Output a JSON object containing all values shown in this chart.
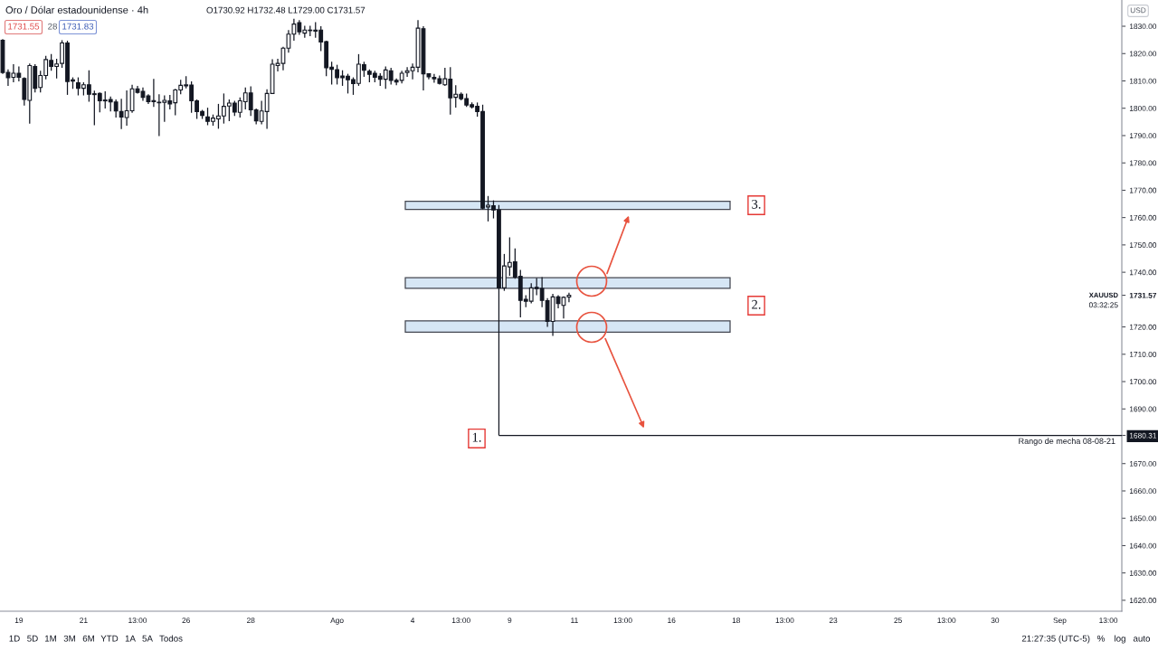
{
  "chart_data": {
    "type": "candlestick",
    "title": "Oro / Dólar estadounidense · 4h",
    "subtitle": "O1730.92 H1732.48 L1729.00 C1731.57",
    "categories": [
      null,
      null,
      null,
      "19",
      null,
      null,
      null,
      null,
      null,
      null,
      null,
      null,
      null,
      null,
      null,
      "21",
      null,
      null,
      null,
      null,
      null,
      null,
      null,
      null,
      null,
      "13:00",
      null,
      null,
      null,
      null,
      null,
      null,
      null,
      null,
      "26",
      null,
      null,
      null,
      null,
      null,
      null,
      null,
      null,
      null,
      null,
      null,
      "28",
      null,
      null,
      null,
      null,
      null,
      null,
      null,
      null,
      null,
      null,
      null,
      null,
      null,
      null,
      null,
      "Ago",
      null,
      null,
      null,
      null,
      null,
      null,
      null,
      null,
      null,
      null,
      null,
      null,
      null,
      "4",
      null,
      null,
      null,
      null,
      null,
      null,
      null,
      null,
      "13:00",
      null,
      null,
      null,
      null,
      null,
      null,
      null,
      null,
      "9",
      null,
      null,
      null,
      null,
      null,
      null,
      null,
      null,
      null,
      null,
      null,
      "11",
      null,
      null,
      null,
      null,
      null,
      null,
      null,
      null,
      "13:00",
      null,
      null,
      null,
      null,
      null,
      null,
      null,
      null,
      "16",
      null,
      null,
      null,
      null,
      null,
      null,
      null,
      null,
      null,
      null,
      null,
      "18",
      null,
      null,
      null,
      null,
      null,
      null,
      null,
      null,
      "13:00",
      null,
      null,
      null,
      null,
      null,
      null,
      null,
      null,
      "23",
      null,
      null,
      null,
      null,
      null,
      null,
      null,
      null,
      null,
      null,
      null,
      "25",
      null,
      null,
      null,
      null,
      null,
      null,
      null,
      null,
      "13:00",
      null,
      null,
      null,
      null,
      null,
      null,
      null,
      null,
      "30",
      null,
      null,
      null,
      null,
      null,
      null,
      null,
      null,
      null,
      null,
      null,
      "Sep",
      null,
      null,
      null,
      null,
      null,
      null,
      null,
      null,
      "13:00",
      null,
      null
    ],
    "ohlc": [
      [
        1824.9,
        1825.3,
        1812.6,
        1813.1
      ],
      [
        1813.1,
        1814.2,
        1808.2,
        1811.2
      ],
      [
        1811.3,
        1816.1,
        1809.5,
        1812.8
      ],
      [
        1812.8,
        1815.3,
        1809.8,
        1811.3
      ],
      [
        1810.9,
        1811.3,
        1801.0,
        1803.2
      ],
      [
        1802.9,
        1816.4,
        1794.4,
        1815.6
      ],
      [
        1815.3,
        1816.1,
        1805.8,
        1807.3
      ],
      [
        1807.6,
        1813.7,
        1805.8,
        1812.0
      ],
      [
        1812.0,
        1819.2,
        1810.6,
        1817.8
      ],
      [
        1817.5,
        1819.8,
        1813.7,
        1815.3
      ],
      [
        1815.3,
        1818.1,
        1810.9,
        1816.2
      ],
      [
        1816.4,
        1824.9,
        1814.8,
        1823.9
      ],
      [
        1823.9,
        1824.7,
        1804.9,
        1809.8
      ],
      [
        1810.4,
        1811.3,
        1807.1,
        1809.9
      ],
      [
        1809.3,
        1811.3,
        1804.7,
        1807.3
      ],
      [
        1807.3,
        1809.5,
        1804.7,
        1808.6
      ],
      [
        1808.6,
        1813.9,
        1802.4,
        1805.1
      ],
      [
        1805.3,
        1806.4,
        1793.8,
        1805.0
      ],
      [
        1805.4,
        1805.8,
        1798.5,
        1802.7
      ],
      [
        1803.0,
        1806.2,
        1799.9,
        1802.7
      ],
      [
        1803.2,
        1804.3,
        1798.8,
        1802.3
      ],
      [
        1802.3,
        1803.2,
        1796.6,
        1799.0
      ],
      [
        1798.8,
        1803.5,
        1792.4,
        1796.8
      ],
      [
        1796.6,
        1806.5,
        1793.6,
        1799.1
      ],
      [
        1799.1,
        1808.6,
        1798.3,
        1807.1
      ],
      [
        1807.1,
        1808.2,
        1805.4,
        1805.8
      ],
      [
        1806.2,
        1807.6,
        1802.7,
        1804.0
      ],
      [
        1804.5,
        1805.1,
        1801.6,
        1802.4
      ],
      [
        1802.8,
        1810.7,
        1800.5,
        1802.4
      ],
      [
        1802.2,
        1805.1,
        1789.8,
        1802.0
      ],
      [
        1802.2,
        1804.7,
        1795.0,
        1802.9
      ],
      [
        1802.7,
        1804.9,
        1799.6,
        1801.6
      ],
      [
        1802.0,
        1807.1,
        1797.4,
        1806.7
      ],
      [
        1806.7,
        1810.4,
        1805.1,
        1808.4
      ],
      [
        1808.2,
        1811.7,
        1807.3,
        1808.6
      ],
      [
        1808.5,
        1809.8,
        1798.3,
        1802.7
      ],
      [
        1802.7,
        1803.2,
        1796.1,
        1798.8
      ],
      [
        1798.8,
        1799.4,
        1796.1,
        1797.4
      ],
      [
        1796.8,
        1800.2,
        1793.8,
        1795.2
      ],
      [
        1795.2,
        1797.7,
        1793.6,
        1796.4
      ],
      [
        1796.1,
        1801.6,
        1792.5,
        1797.2
      ],
      [
        1797.2,
        1805.4,
        1794.4,
        1800.7
      ],
      [
        1800.8,
        1803.2,
        1795.3,
        1801.9
      ],
      [
        1801.9,
        1802.7,
        1797.2,
        1798.6
      ],
      [
        1798.5,
        1804.0,
        1796.6,
        1802.7
      ],
      [
        1802.4,
        1807.6,
        1799.6,
        1805.6
      ],
      [
        1805.6,
        1808.0,
        1797.2,
        1799.4
      ],
      [
        1799.4,
        1799.9,
        1794.1,
        1795.4
      ],
      [
        1795.2,
        1802.7,
        1794.1,
        1799.0
      ],
      [
        1798.8,
        1806.9,
        1792.5,
        1805.4
      ],
      [
        1805.4,
        1817.9,
        1805.4,
        1816.1
      ],
      [
        1815.6,
        1818.1,
        1813.5,
        1816.4
      ],
      [
        1816.4,
        1822.5,
        1813.9,
        1822.0
      ],
      [
        1822.0,
        1828.6,
        1820.3,
        1827.1
      ],
      [
        1827.1,
        1832.7,
        1824.7,
        1830.8
      ],
      [
        1831.3,
        1832.2,
        1826.9,
        1828.0
      ],
      [
        1827.5,
        1830.2,
        1825.8,
        1828.6
      ],
      [
        1828.6,
        1830.2,
        1826.4,
        1828.4
      ],
      [
        1828.6,
        1831.5,
        1825.8,
        1828.2
      ],
      [
        1828.6,
        1830.0,
        1820.9,
        1824.2
      ],
      [
        1824.4,
        1824.7,
        1811.7,
        1814.8
      ],
      [
        1815.0,
        1817.0,
        1808.7,
        1814.2
      ],
      [
        1814.1,
        1815.9,
        1808.7,
        1811.2
      ],
      [
        1811.8,
        1813.9,
        1808.2,
        1811.2
      ],
      [
        1811.7,
        1812.6,
        1805.4,
        1810.4
      ],
      [
        1810.5,
        1811.3,
        1804.9,
        1809.0
      ],
      [
        1809.1,
        1819.8,
        1808.2,
        1816.1
      ],
      [
        1815.9,
        1817.0,
        1811.5,
        1813.9
      ],
      [
        1813.5,
        1814.2,
        1809.5,
        1812.4
      ],
      [
        1812.8,
        1813.7,
        1809.5,
        1811.3
      ],
      [
        1811.7,
        1812.8,
        1808.2,
        1810.6
      ],
      [
        1810.6,
        1815.3,
        1807.1,
        1814.0
      ],
      [
        1813.7,
        1814.8,
        1808.7,
        1810.2
      ],
      [
        1810.2,
        1810.9,
        1808.4,
        1809.6
      ],
      [
        1810.2,
        1813.7,
        1809.1,
        1812.8
      ],
      [
        1813.1,
        1815.0,
        1811.5,
        1813.7
      ],
      [
        1813.7,
        1816.4,
        1810.6,
        1815.0
      ],
      [
        1815.0,
        1832.2,
        1813.1,
        1829.3
      ],
      [
        1829.1,
        1830.0,
        1806.5,
        1812.6
      ],
      [
        1812.6,
        1812.8,
        1810.6,
        1811.5
      ],
      [
        1811.3,
        1812.6,
        1809.3,
        1810.8
      ],
      [
        1810.8,
        1812.0,
        1808.7,
        1809.1
      ],
      [
        1808.6,
        1814.8,
        1808.2,
        1810.8
      ],
      [
        1810.6,
        1815.0,
        1797.7,
        1803.8
      ],
      [
        1804.0,
        1808.4,
        1800.2,
        1805.1
      ],
      [
        1805.1,
        1805.8,
        1802.9,
        1803.5
      ],
      [
        1803.5,
        1805.4,
        1800.5,
        1801.2
      ],
      [
        1801.3,
        1802.1,
        1799.9,
        1800.5
      ],
      [
        1800.7,
        1802.1,
        1796.9,
        1798.8
      ],
      [
        1798.8,
        1801.3,
        1763.0,
        1763.5
      ],
      [
        1763.9,
        1767.9,
        1758.6,
        1764.5
      ],
      [
        1764.3,
        1766.3,
        1759.7,
        1762.8
      ],
      [
        1762.8,
        1764.6,
        1680.31,
        1734.3
      ],
      [
        1734.3,
        1746.7,
        1733.2,
        1742.3
      ],
      [
        1742.0,
        1752.8,
        1738.7,
        1743.6
      ],
      [
        1743.8,
        1748.7,
        1737.6,
        1738.2
      ],
      [
        1738.5,
        1740.9,
        1723.5,
        1729.7
      ],
      [
        1730.1,
        1731.6,
        1727.2,
        1729.4
      ],
      [
        1729.4,
        1736.0,
        1728.6,
        1734.3
      ],
      [
        1734.5,
        1737.9,
        1731.6,
        1734.0
      ],
      [
        1734.1,
        1738.2,
        1727.2,
        1729.7
      ],
      [
        1729.6,
        1730.5,
        1720.0,
        1722.0
      ],
      [
        1722.0,
        1732.1,
        1716.7,
        1731.0
      ],
      [
        1731.0,
        1731.6,
        1726.8,
        1728.6
      ],
      [
        1727.9,
        1731.2,
        1723.1,
        1730.8
      ],
      [
        1730.92,
        1732.48,
        1729.0,
        1731.57
      ],
      null,
      null,
      null,
      null,
      null,
      null,
      null,
      null,
      null,
      null,
      null,
      null,
      null,
      null,
      null,
      null,
      null,
      null,
      null,
      null,
      null,
      null,
      null,
      null,
      null,
      null,
      null,
      null,
      null,
      null,
      null,
      null,
      null,
      null,
      null,
      null,
      null,
      null,
      null,
      null,
      null,
      null,
      null,
      null,
      null,
      null,
      null,
      null,
      null,
      null,
      null,
      null,
      null,
      null,
      null,
      null,
      null,
      null,
      null,
      null,
      null,
      null,
      null,
      null,
      null,
      null,
      null,
      null,
      null,
      null,
      null,
      null,
      null,
      null,
      null,
      null,
      null,
      null,
      null,
      null,
      null,
      null,
      null,
      null,
      null,
      null,
      null,
      null,
      null,
      null,
      null,
      null,
      null,
      null,
      null,
      null,
      null,
      null,
      null,
      null,
      null,
      null
    ],
    "ylim": [
      1616.0,
      1839.6
    ],
    "yticks": [
      {
        "value": 1620,
        "label": "1620.00"
      },
      {
        "value": 1630,
        "label": "1630.00"
      },
      {
        "value": 1640,
        "label": "1640.00"
      },
      {
        "value": 1650,
        "label": "1650.00"
      },
      {
        "value": 1660,
        "label": "1660.00"
      },
      {
        "value": 1670,
        "label": "1670.00"
      },
      1680.31,
      {
        "value": 1690,
        "label": "1690.00"
      },
      {
        "value": 1700,
        "label": "1700.00"
      },
      {
        "value": 1710,
        "label": "1710.00"
      },
      {
        "value": 1720,
        "label": "1720.00"
      },
      1731.57,
      {
        "value": 1740,
        "label": "1740.00"
      },
      {
        "value": 1750,
        "label": "1750.00"
      },
      {
        "value": 1760,
        "label": "1760.00"
      },
      {
        "value": 1770,
        "label": "1770.00"
      },
      {
        "value": 1780,
        "label": "1780.00"
      },
      {
        "value": 1790,
        "label": "1790.00"
      },
      {
        "value": 1800,
        "label": "1800.00"
      },
      {
        "value": 1810,
        "label": "1810.00"
      },
      {
        "value": 1820,
        "label": "1820.00"
      },
      {
        "value": 1830,
        "label": "1830.00"
      }
    ],
    "bands": [
      {
        "axis": "y",
        "from": 1763.0,
        "to": 1766.0,
        "color": "#d6e6f5"
      },
      {
        "axis": "y",
        "from": 1734.1,
        "to": 1738.0,
        "color": "#d6e6f5"
      },
      {
        "axis": "y",
        "from": 1718.1,
        "to": 1722.2,
        "color": "#d6e6f5"
      }
    ],
    "ref_lines": [
      {
        "axis": "y",
        "value": 1680.31,
        "label": "Rango de mecha 08-08-21",
        "color": "#131722",
        "line_style": "solid"
      }
    ],
    "annotations": [
      "1731.55",
      "28",
      "1731.83",
      {
        "text": "3.",
        "y": 1764.5
      },
      {
        "text": "2.",
        "y": 1727.8
      },
      {
        "text": "1.",
        "y": 1679.2
      },
      "XAUUSD",
      "03:32:25",
      "USD",
      "1D",
      "5D",
      "1M",
      "3M",
      "6M",
      "YTD",
      "1A",
      "5A",
      "Todos",
      "21:27:35 (UTC-5)",
      "%",
      "log",
      "auto"
    ]
  }
}
